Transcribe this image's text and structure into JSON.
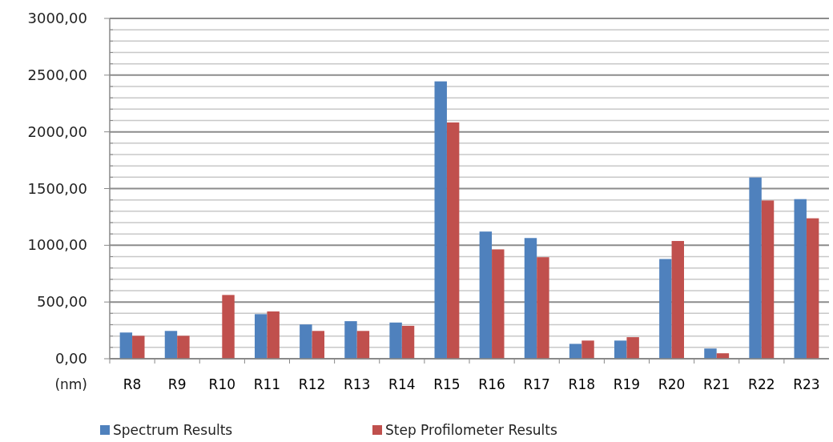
{
  "chart_data": {
    "type": "bar",
    "ylabel": "(nm)",
    "categories": [
      "R8",
      "R9",
      "R10",
      "R11",
      "R12",
      "R13",
      "R14",
      "R15",
      "R16",
      "R17",
      "R18",
      "R19",
      "R20",
      "R21",
      "R22",
      "R23"
    ],
    "series": [
      {
        "name": "Spectrum Results",
        "color": "#4f81bd",
        "values": [
          231,
          245,
          null,
          393,
          302,
          331,
          319,
          2445,
          1121,
          1064,
          131,
          160,
          879,
          90,
          1598,
          1407
        ]
      },
      {
        "name": "Step Profilometer Results",
        "color": "#c0504d",
        "values": [
          202,
          202,
          562,
          417,
          245,
          245,
          290,
          2083,
          964,
          895,
          160,
          190,
          1038,
          48,
          1395,
          1238
        ]
      }
    ],
    "ylim": [
      0,
      3000
    ],
    "yticks": [
      {
        "value": 0,
        "label": "0,00"
      },
      {
        "value": 100,
        "label": null
      },
      {
        "value": 200,
        "label": null
      },
      {
        "value": 300,
        "label": null
      },
      {
        "value": 400,
        "label": null
      },
      {
        "value": 500,
        "label": "500,00"
      },
      {
        "value": 600,
        "label": null
      },
      {
        "value": 700,
        "label": null
      },
      {
        "value": 800,
        "label": null
      },
      {
        "value": 900,
        "label": null
      },
      {
        "value": 1000,
        "label": "1000,00"
      },
      {
        "value": 1100,
        "label": null
      },
      {
        "value": 1200,
        "label": null
      },
      {
        "value": 1300,
        "label": null
      },
      {
        "value": 1400,
        "label": null
      },
      {
        "value": 1500,
        "label": "1500,00"
      },
      {
        "value": 1600,
        "label": null
      },
      {
        "value": 1700,
        "label": null
      },
      {
        "value": 1800,
        "label": null
      },
      {
        "value": 1900,
        "label": null
      },
      {
        "value": 2000,
        "label": "2000,00"
      },
      {
        "value": 2100,
        "label": null
      },
      {
        "value": 2200,
        "label": null
      },
      {
        "value": 2300,
        "label": null
      },
      {
        "value": 2400,
        "label": null
      },
      {
        "value": 2500,
        "label": "2500,00"
      },
      {
        "value": 2600,
        "label": null
      },
      {
        "value": 2700,
        "label": null
      },
      {
        "value": 2800,
        "label": null
      },
      {
        "value": 2900,
        "label": null
      },
      {
        "value": 3000,
        "label": "3000,00"
      }
    ],
    "grid": true,
    "legend": "bottom"
  }
}
